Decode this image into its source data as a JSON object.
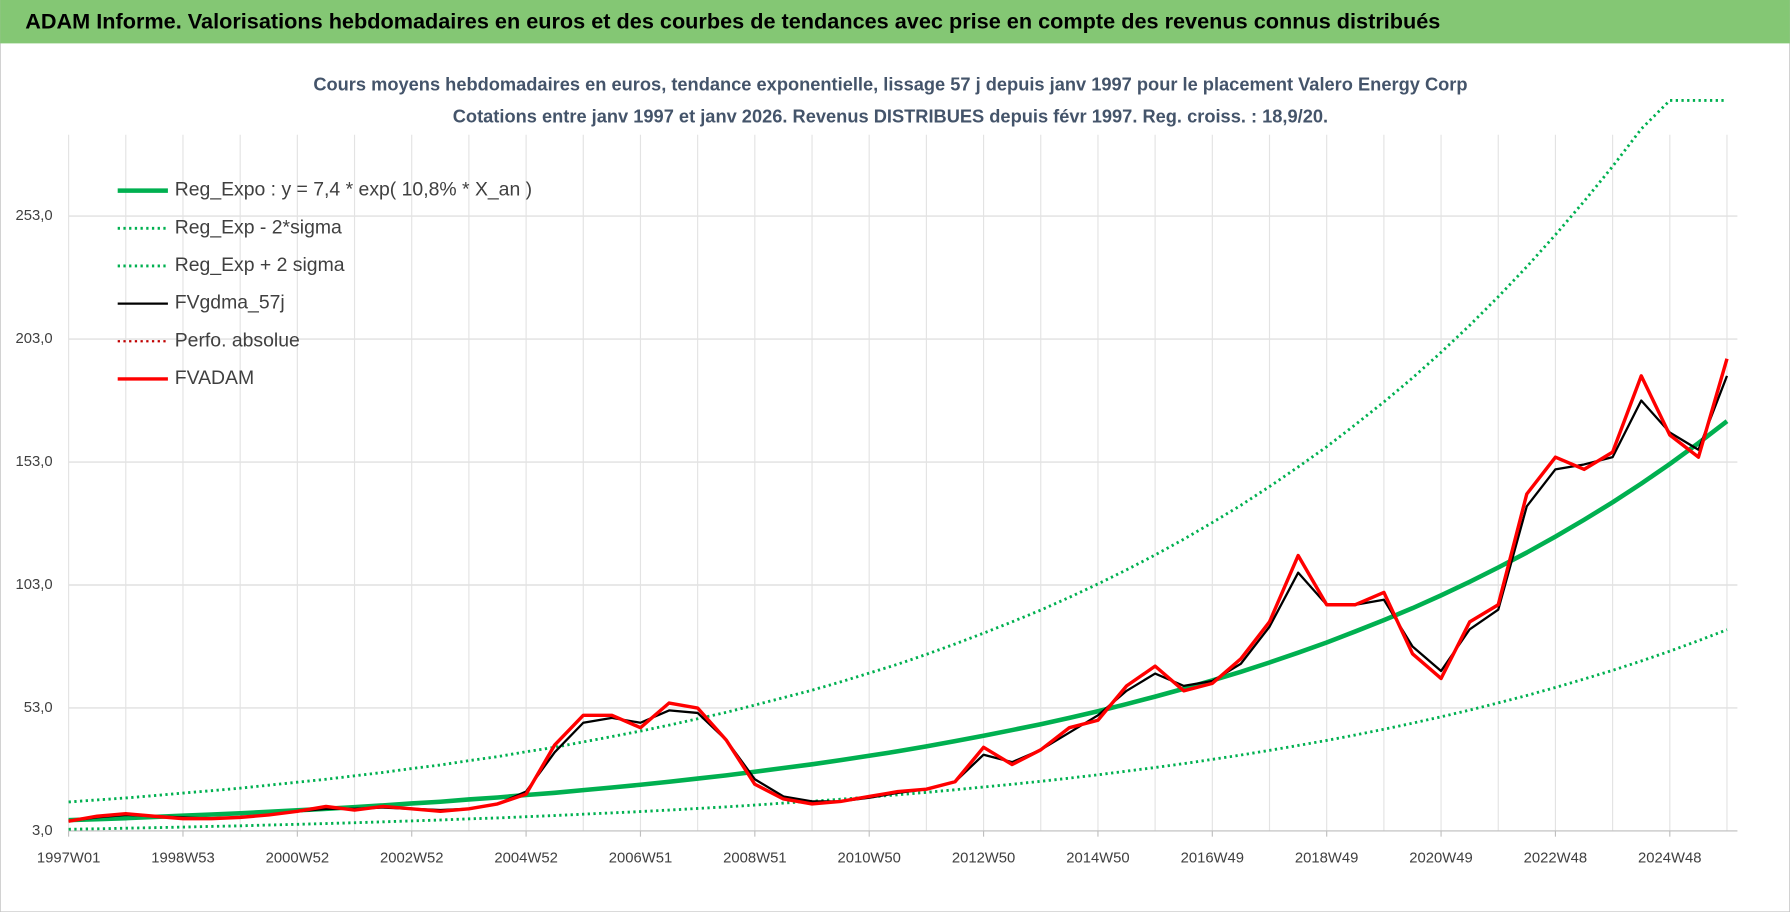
{
  "header": {
    "title": "ADAM Informe. Valorisations hebdomadaires en euros et des courbes de tendances avec prise en compte des revenus connus distribués"
  },
  "chart_data": {
    "type": "line",
    "title": "Cours moyens hebdomadaires en euros, tendance exponentielle, lissage 57 j depuis janv 1997 pour le placement Valero Energy Corp",
    "subtitle": "Cotations entre janv 1997 et janv 2026. Revenus DISTRIBUES depuis févr 1997. Reg. croiss. : 18,9/20.",
    "legend": "upper left",
    "grid": true,
    "categories": [
      "1997W01",
      null,
      null,
      null,
      "1998W53",
      null,
      null,
      null,
      "2000W52",
      null,
      null,
      null,
      "2002W52",
      null,
      null,
      null,
      "2004W52",
      null,
      null,
      null,
      "2006W51",
      null,
      null,
      null,
      "2008W51",
      null,
      null,
      null,
      "2010W50",
      null,
      null,
      null,
      "2012W50",
      null,
      null,
      null,
      "2014W50",
      null,
      null,
      null,
      "2016W49",
      null,
      null,
      null,
      "2018W49",
      null,
      null,
      null,
      "2020W49",
      null,
      null,
      null,
      "2022W48",
      null,
      null,
      null,
      "2024W48",
      null,
      null
    ],
    "ylim": [
      3,
      300
    ],
    "yticks": [
      {
        "value": 3,
        "label": "3,0"
      },
      {
        "value": 53,
        "label": "53,0"
      },
      {
        "value": 103,
        "label": "103,0"
      },
      {
        "value": 153,
        "label": "153,0"
      },
      {
        "value": 203,
        "label": "203,0"
      },
      {
        "value": 253,
        "label": "253,0"
      }
    ],
    "series": [
      {
        "name": "Reg_Expo : y = 7,4 * exp( 10,8% *  X_an )",
        "color": "#00b050",
        "style": "solid",
        "width": 4,
        "values": [
          7.4,
          7.8,
          8.2,
          8.7,
          9.2,
          9.7,
          10.2,
          10.8,
          11.4,
          12.0,
          12.7,
          13.4,
          14.2,
          14.9,
          15.8,
          16.6,
          17.6,
          18.5,
          19.6,
          20.7,
          21.8,
          23.0,
          24.3,
          25.6,
          27.1,
          28.6,
          30.1,
          31.8,
          33.6,
          35.4,
          37.4,
          39.5,
          41.7,
          44.0,
          46.4,
          49.0,
          51.7,
          54.6,
          57.6,
          60.8,
          64.2,
          67.7,
          71.5,
          75.5,
          79.6,
          84.1,
          88.7,
          93.6,
          98.8,
          104.3,
          110.1,
          116.2,
          122.7,
          129.5,
          136.6,
          144.2,
          152.2,
          160.7,
          169.6
        ]
      },
      {
        "name": "Reg_Exp - 2*sigma",
        "color": "#00b050",
        "style": "dotted",
        "width": 2.5,
        "values": [
          3.7,
          3.9,
          4.1,
          4.35,
          4.6,
          4.85,
          5.1,
          5.4,
          5.7,
          6.0,
          6.35,
          6.7,
          7.1,
          7.45,
          7.9,
          8.3,
          8.8,
          9.25,
          9.8,
          10.35,
          10.9,
          11.5,
          12.15,
          12.8,
          13.55,
          14.3,
          15.05,
          15.9,
          16.8,
          17.7,
          18.7,
          19.75,
          20.85,
          22.0,
          23.2,
          24.5,
          25.85,
          27.3,
          28.8,
          30.4,
          32.1,
          33.85,
          35.75,
          37.75,
          39.8,
          42.05,
          44.35,
          46.8,
          49.4,
          52.15,
          55.05,
          58.1,
          61.35,
          64.75,
          68.3,
          72.1,
          76.1,
          80.35,
          84.8
        ]
      },
      {
        "name": "Reg_Exp + 2 sigma",
        "color": "#00b050",
        "style": "dotted",
        "width": 2.5,
        "values": [
          14.8,
          15.6,
          16.4,
          17.4,
          18.4,
          19.4,
          20.4,
          21.6,
          22.8,
          24.0,
          25.4,
          26.8,
          28.4,
          29.8,
          31.6,
          33.2,
          35.2,
          37.0,
          39.2,
          41.4,
          43.6,
          46.0,
          48.6,
          51.2,
          54.2,
          57.2,
          60.2,
          63.6,
          67.2,
          70.8,
          74.8,
          79.0,
          83.4,
          88.0,
          92.8,
          98.0,
          103.4,
          109.2,
          115.2,
          121.6,
          128.4,
          135.4,
          143.0,
          151.0,
          159.2,
          168.2,
          177.4,
          187.2,
          197.6,
          208.6,
          220.2,
          232.4,
          245.4,
          259.0,
          273.2,
          288.4,
          300,
          300,
          300
        ]
      },
      {
        "name": "FVgdma_57j",
        "color": "#000000",
        "style": "solid",
        "width": 2,
        "values": [
          7,
          8.5,
          9.5,
          9,
          8.5,
          8,
          8.5,
          9.5,
          11,
          12,
          12,
          12.5,
          12,
          11.5,
          12,
          14,
          19,
          35,
          47,
          49,
          47,
          52,
          51,
          40,
          24,
          17,
          15,
          15,
          16.5,
          18.5,
          20,
          23,
          34,
          31,
          36,
          43,
          50,
          60,
          67,
          62,
          64,
          71,
          86,
          108,
          95,
          95,
          97,
          78,
          68,
          85,
          93,
          135,
          150,
          152,
          155,
          178,
          165,
          158,
          188
        ]
      },
      {
        "name": "Perfo. absolue",
        "color": "#c00000",
        "style": "dotted",
        "width": 2,
        "values": [
          7,
          9,
          10,
          9,
          8,
          8,
          8.5,
          9.5,
          11,
          13,
          11.5,
          13,
          12,
          11,
          12,
          14,
          18,
          38,
          50,
          50,
          45,
          55,
          53,
          40,
          22,
          16,
          14,
          15,
          17,
          19,
          20,
          23,
          37,
          30,
          36,
          45,
          48,
          62,
          70,
          60,
          63,
          73,
          88,
          115,
          95,
          95,
          100,
          75,
          65,
          88,
          95,
          140,
          155,
          150,
          157,
          188,
          164,
          155,
          195
        ]
      },
      {
        "name": "FVADAM",
        "color": "#ff0000",
        "style": "solid",
        "width": 3,
        "values": [
          7,
          9,
          10,
          9,
          8,
          8,
          8.5,
          9.5,
          11,
          13,
          11.5,
          13,
          12,
          11,
          12,
          14,
          18,
          38,
          50,
          50,
          45,
          55,
          53,
          40,
          22,
          16,
          14,
          15,
          17,
          19,
          20,
          23,
          37,
          30,
          36,
          45,
          48,
          62,
          70,
          60,
          63,
          73,
          88,
          115,
          95,
          95,
          100,
          75,
          65,
          88,
          95,
          140,
          155,
          150,
          157,
          188,
          164,
          155,
          195
        ]
      }
    ]
  }
}
